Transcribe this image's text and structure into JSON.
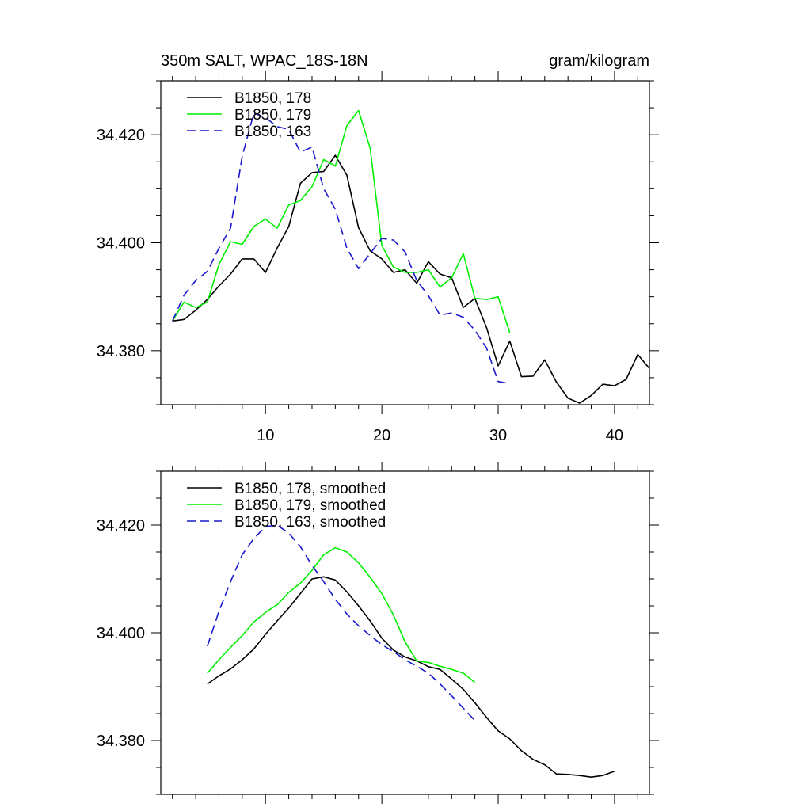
{
  "chart_data": [
    {
      "type": "line",
      "title": "350m SALT, WPAC_18S-18N",
      "units": "gram/kilogram",
      "xlim": [
        1,
        43
      ],
      "ylim": [
        34.37,
        34.43
      ],
      "xticks": [
        10,
        20,
        30,
        40
      ],
      "yticks": [
        34.38,
        34.4,
        34.42
      ],
      "ytick_labels": [
        "34.380",
        "34.400",
        "34.420"
      ],
      "legend_position": "top-left",
      "series": [
        {
          "name": "B1850, 178",
          "color": "#000000",
          "dash": "solid",
          "x": [
            2,
            3,
            4,
            5,
            6,
            7,
            8,
            9,
            10,
            11,
            12,
            13,
            14,
            15,
            16,
            17,
            18,
            19,
            20,
            21,
            22,
            23,
            24,
            25,
            26,
            27,
            28,
            29,
            30,
            31,
            32,
            33,
            34,
            35,
            36,
            37,
            38,
            39,
            40,
            41,
            42,
            43
          ],
          "y": [
            34.3855,
            34.3858,
            34.3875,
            34.3895,
            34.392,
            34.3942,
            34.397,
            34.397,
            34.3945,
            34.399,
            34.403,
            34.411,
            34.413,
            34.4132,
            34.4162,
            34.4125,
            34.4028,
            34.3985,
            34.397,
            34.3945,
            34.395,
            34.3925,
            34.3965,
            34.3942,
            34.3935,
            34.388,
            34.3897,
            34.3843,
            34.3772,
            34.3818,
            34.3752,
            34.3753,
            34.3783,
            34.3742,
            34.3712,
            34.3703,
            34.3717,
            34.3738,
            34.3735,
            34.3747,
            34.3793,
            34.3767
          ]
        },
        {
          "name": "B1850, 179",
          "color": "#00ee00",
          "dash": "solid",
          "x": [
            2,
            3,
            4,
            5,
            6,
            7,
            8,
            9,
            10,
            11,
            12,
            13,
            14,
            15,
            16,
            17,
            18,
            19,
            20,
            21,
            22,
            23,
            24,
            25,
            26,
            27,
            28,
            29,
            30,
            31
          ],
          "y": [
            34.3855,
            34.389,
            34.388,
            34.389,
            34.396,
            34.4002,
            34.3997,
            34.403,
            34.4044,
            34.4027,
            34.407,
            34.4078,
            34.4104,
            34.4154,
            34.4142,
            34.4217,
            34.4245,
            34.4175,
            34.3995,
            34.3955,
            34.3945,
            34.3945,
            34.395,
            34.3918,
            34.3935,
            34.398,
            34.3897,
            34.3895,
            34.39,
            34.3833
          ]
        },
        {
          "name": "B1850, 163",
          "color": "#1a1acc",
          "dash": "dashed",
          "x": [
            2,
            3,
            4,
            5,
            6,
            7,
            8,
            9,
            10,
            11,
            12,
            13,
            14,
            15,
            16,
            17,
            18,
            19,
            20,
            21,
            22,
            23,
            24,
            25,
            26,
            27,
            28,
            29,
            30,
            31
          ],
          "y": [
            34.3855,
            34.3903,
            34.393,
            34.3947,
            34.399,
            34.4027,
            34.416,
            34.424,
            34.4232,
            34.4215,
            34.421,
            34.4168,
            34.4177,
            34.41,
            34.4062,
            34.399,
            34.3952,
            34.398,
            34.4008,
            34.4005,
            34.3983,
            34.393,
            34.3902,
            34.3866,
            34.387,
            34.3862,
            34.3838,
            34.3805,
            34.3743,
            34.3739
          ]
        }
      ]
    },
    {
      "type": "line",
      "title": "",
      "xlim": [
        1,
        43
      ],
      "ylim": [
        34.37,
        34.43
      ],
      "yticks": [
        34.38,
        34.4,
        34.42
      ],
      "ytick_labels": [
        "34.380",
        "34.400",
        "34.420"
      ],
      "legend_position": "top-left",
      "series": [
        {
          "name": "B1850, 178, smoothed",
          "color": "#000000",
          "dash": "solid",
          "x": [
            5,
            6,
            7,
            8,
            9,
            10,
            11,
            12,
            13,
            14,
            15,
            16,
            17,
            18,
            19,
            20,
            21,
            22,
            23,
            24,
            25,
            26,
            27,
            28,
            29,
            30,
            31,
            32,
            33,
            34,
            35,
            36,
            37,
            38,
            39,
            40
          ],
          "y": [
            34.3905,
            34.392,
            34.3933,
            34.395,
            34.397,
            34.3997,
            34.4022,
            34.4046,
            34.4073,
            34.41,
            34.4104,
            34.4098,
            34.4076,
            34.405,
            34.4022,
            34.399,
            34.3968,
            34.3955,
            34.3948,
            34.3937,
            34.3932,
            34.3914,
            34.3895,
            34.387,
            34.3843,
            34.3818,
            34.3803,
            34.3781,
            34.3765,
            34.3755,
            34.3738,
            34.3737,
            34.3735,
            34.3732,
            34.3735,
            34.3743
          ]
        },
        {
          "name": "B1850, 179, smoothed",
          "color": "#00ee00",
          "dash": "solid",
          "x": [
            5,
            6,
            7,
            8,
            9,
            10,
            11,
            12,
            13,
            14,
            15,
            16,
            17,
            18,
            19,
            20,
            21,
            22,
            23,
            24,
            25,
            26,
            27,
            28
          ],
          "y": [
            34.3925,
            34.395,
            34.3973,
            34.3995,
            34.402,
            34.4038,
            34.4052,
            34.4075,
            34.4092,
            34.4116,
            34.4145,
            34.4158,
            34.415,
            34.413,
            34.4103,
            34.4073,
            34.4033,
            34.3983,
            34.3948,
            34.3945,
            34.3938,
            34.3932,
            34.3925,
            34.3908
          ]
        },
        {
          "name": "B1850, 163, smoothed",
          "color": "#1a1acc",
          "dash": "dashed",
          "x": [
            5,
            6,
            7,
            8,
            9,
            10,
            11,
            12,
            13,
            14,
            15,
            16,
            17,
            18,
            19,
            20,
            21,
            22,
            23,
            24,
            25,
            26,
            27,
            28
          ],
          "y": [
            34.3975,
            34.404,
            34.4095,
            34.4145,
            34.4175,
            34.4197,
            34.42,
            34.4185,
            34.416,
            34.4125,
            34.4095,
            34.4062,
            34.4035,
            34.4013,
            34.3995,
            34.3978,
            34.3965,
            34.395,
            34.3938,
            34.3925,
            34.3905,
            34.3883,
            34.386,
            34.3837
          ]
        }
      ]
    }
  ]
}
